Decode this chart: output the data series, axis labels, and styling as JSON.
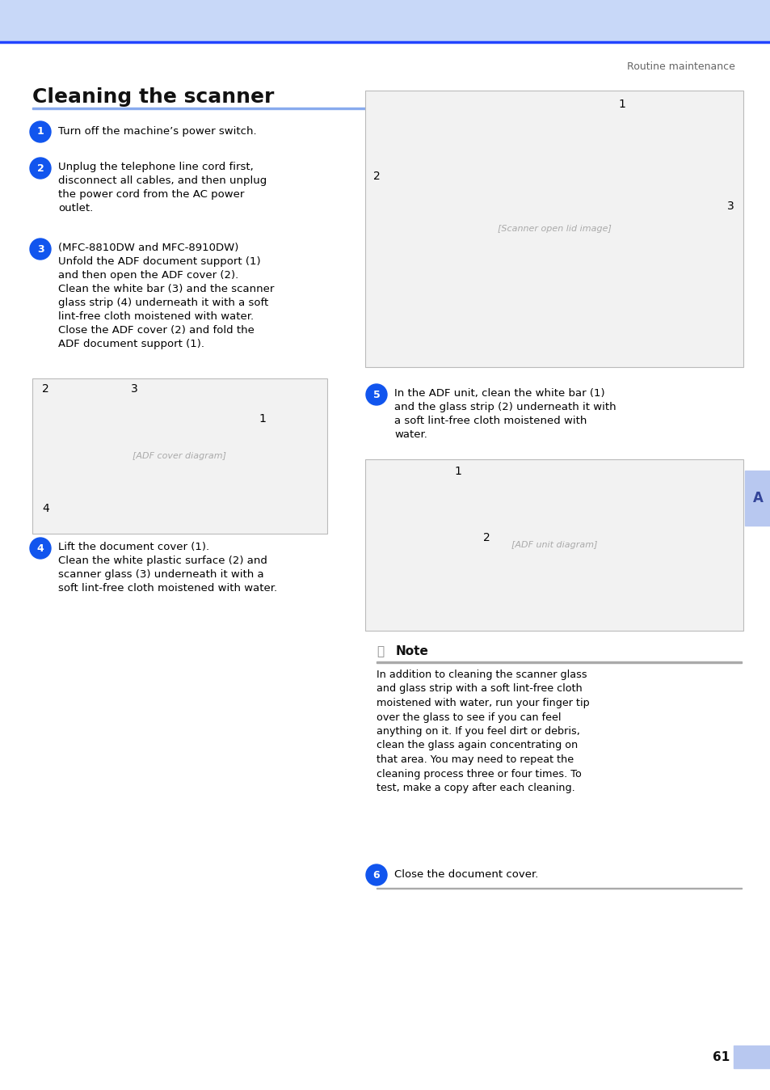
{
  "page_title": "Cleaning the scanner",
  "header_bg_color": "#C8D8F8",
  "header_line_color": "#2244FF",
  "title_underline_color": "#88AAEE",
  "section_label": "Routine maintenance",
  "page_number": "61",
  "page_number_bg": "#B8C8F0",
  "sidebar_bg": "#B8C8F0",
  "circle_color": "#1155EE",
  "circle_text_color": "#FFFFFF",
  "body_text_color": "#000000",
  "gray_text_color": "#666666",
  "note_icon_color": "#888888",
  "steps": [
    {
      "num": "1",
      "text": "Turn off the machine’s power switch."
    },
    {
      "num": "2",
      "text": "Unplug the telephone line cord first,\ndisconnect all cables, and then unplug\nthe power cord from the AC power\noutlet."
    },
    {
      "num": "3",
      "text": "(MFC-8810DW and MFC-8910DW)\nUnfold the ADF document support (1)\nand then open the ADF cover (2).\nClean the white bar (3) and the scanner\nglass strip (4) underneath it with a soft\nlint-free cloth moistened with water.\nClose the ADF cover (2) and fold the\nADF document support (1)."
    },
    {
      "num": "4",
      "text": "Lift the document cover (1).\nClean the white plastic surface (2) and\nscanner glass (3) underneath it with a\nsoft lint-free cloth moistened with water."
    },
    {
      "num": "5",
      "text": "In the ADF unit, clean the white bar (1)\nand the glass strip (2) underneath it with\na soft lint-free cloth moistened with\nwater."
    },
    {
      "num": "6",
      "text": "Close the document cover."
    }
  ],
  "note_title": "Note",
  "note_text": "In addition to cleaning the scanner glass\nand glass strip with a soft lint-free cloth\nmoistened with water, run your finger tip\nover the glass to see if you can feel\nanything on it. If you feel dirt or debris,\nclean the glass again concentrating on\nthat area. You may need to repeat the\ncleaning process three or four times. To\ntest, make a copy after each cleaning."
}
